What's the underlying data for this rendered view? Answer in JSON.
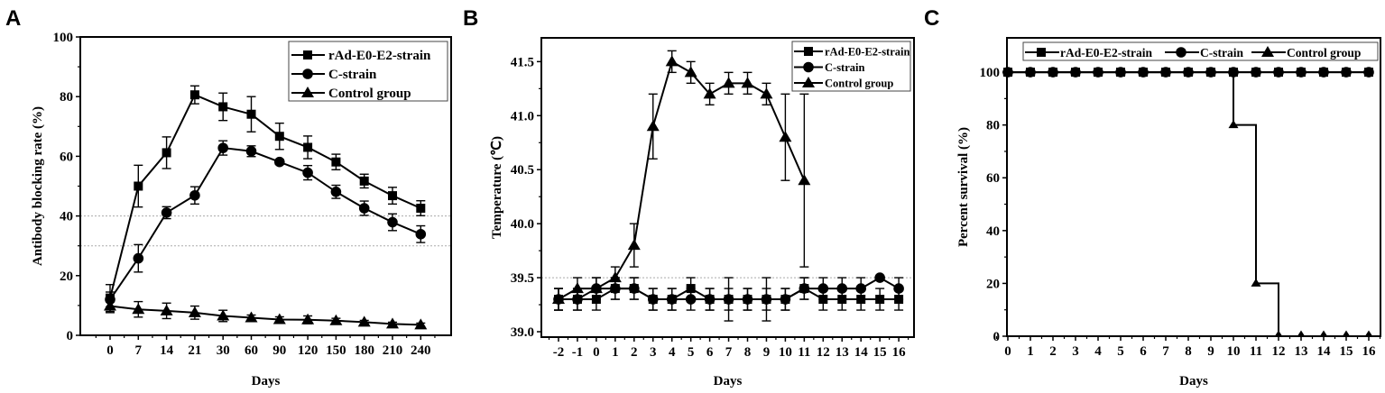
{
  "figure": {
    "panels": [
      "A",
      "B",
      "C"
    ]
  },
  "legend": [
    "rAd-E0-E2-strain",
    "C-strain",
    "Control group"
  ],
  "chart_data": [
    {
      "panel": "A",
      "type": "line",
      "title": "",
      "xlabel": "Days",
      "ylabel": "Antibody blocking rate (%)",
      "categories": [
        "0",
        "7",
        "14",
        "21",
        "30",
        "60",
        "90",
        "120",
        "150",
        "180",
        "210",
        "240"
      ],
      "ylim": [
        0,
        100
      ],
      "yticks": [
        0,
        20,
        40,
        60,
        80,
        100
      ],
      "reference_lines": [
        40,
        30
      ],
      "legend_position": "upper right",
      "series": [
        {
          "name": "rAd-E0-E2-strain",
          "marker": "square",
          "values": [
            12.5,
            50,
            61.2,
            80.6,
            76.6,
            74.1,
            66.7,
            63.0,
            58.1,
            51.7,
            46.8,
            42.6
          ],
          "errors": [
            4.5,
            7.0,
            5.3,
            3.0,
            4.6,
            5.9,
            4.4,
            3.8,
            2.6,
            2.3,
            2.8,
            2.5
          ]
        },
        {
          "name": "C-strain",
          "marker": "circle",
          "values": [
            12.0,
            25.8,
            41.1,
            46.9,
            62.8,
            61.7,
            58.1,
            54.5,
            48.1,
            42.6,
            37.9,
            33.9
          ],
          "errors": [
            2.5,
            4.6,
            2.0,
            2.9,
            2.4,
            1.8,
            0.8,
            2.4,
            2.2,
            2.4,
            2.8,
            2.8
          ]
        },
        {
          "name": "Control group",
          "marker": "triangle",
          "values": [
            9.8,
            8.7,
            8.2,
            7.6,
            6.5,
            5.9,
            5.3,
            5.2,
            4.9,
            4.4,
            3.8,
            3.5
          ],
          "errors": [
            2.2,
            2.6,
            2.6,
            2.2,
            1.9,
            0.9,
            0.9,
            1.3,
            0.8,
            0.6,
            0.6,
            0.6
          ]
        }
      ]
    },
    {
      "panel": "B",
      "type": "line",
      "title": "",
      "xlabel": "Days",
      "ylabel": "Temperature (℃)",
      "categories": [
        "-2",
        "-1",
        "0",
        "1",
        "2",
        "3",
        "4",
        "5",
        "6",
        "7",
        "8",
        "9",
        "10",
        "11",
        "12",
        "13",
        "14",
        "15",
        "16"
      ],
      "ylim": [
        38.95,
        41.72
      ],
      "yticks": [
        39.0,
        39.5,
        40.0,
        40.5,
        41.0,
        41.5
      ],
      "ytick_labels": [
        "39.0",
        "39.5",
        "40.0",
        "40.5",
        "41.0",
        "41.5"
      ],
      "reference_lines": [
        39.5
      ],
      "legend_position": "upper right",
      "series": [
        {
          "name": "rAd-E0-E2-strain",
          "marker": "square",
          "values": [
            39.3,
            39.3,
            39.3,
            39.4,
            39.4,
            39.3,
            39.3,
            39.4,
            39.3,
            39.3,
            39.3,
            39.3,
            39.3,
            39.4,
            39.3,
            39.3,
            39.3,
            39.3,
            39.3
          ],
          "errors": [
            0.1,
            0.1,
            0.1,
            0.1,
            0.1,
            0.1,
            0.1,
            0.1,
            0.1,
            0.2,
            0.1,
            0.2,
            0.1,
            0.1,
            0.1,
            0.1,
            0.1,
            0.1,
            0.1
          ]
        },
        {
          "name": "C-strain",
          "marker": "circle",
          "values": [
            39.3,
            39.3,
            39.4,
            39.4,
            39.4,
            39.3,
            39.3,
            39.3,
            39.3,
            39.3,
            39.3,
            39.3,
            39.3,
            39.4,
            39.4,
            39.4,
            39.4,
            39.5,
            39.4
          ],
          "errors": [
            0.1,
            0.1,
            0.1,
            0.1,
            0.1,
            0.1,
            0.1,
            0.1,
            0.1,
            0.1,
            0.1,
            0.1,
            0.1,
            0.1,
            0.1,
            0.1,
            0.1,
            0.0,
            0.1
          ]
        },
        {
          "name": "Control group",
          "marker": "triangle",
          "values": [
            39.3,
            39.4,
            39.4,
            39.5,
            39.8,
            40.9,
            41.5,
            41.4,
            41.2,
            41.3,
            41.3,
            41.2,
            40.8,
            40.4
          ],
          "errors": [
            0.1,
            0.1,
            0.1,
            0.1,
            0.2,
            0.3,
            0.1,
            0.1,
            0.1,
            0.1,
            0.1,
            0.1,
            0.4,
            0.8
          ]
        }
      ]
    },
    {
      "panel": "C",
      "type": "line",
      "step": true,
      "title": "",
      "xlabel": "Days",
      "ylabel": "Percent survival (%)",
      "categories": [
        "0",
        "1",
        "2",
        "3",
        "4",
        "5",
        "6",
        "7",
        "8",
        "9",
        "10",
        "11",
        "12",
        "13",
        "14",
        "15",
        "16"
      ],
      "ylim": [
        0,
        113
      ],
      "yticks": [
        0,
        20,
        40,
        60,
        80,
        100
      ],
      "legend_position": "top (horizontal)",
      "series": [
        {
          "name": "rAd-E0-E2-strain",
          "marker": "square",
          "values": [
            100,
            100,
            100,
            100,
            100,
            100,
            100,
            100,
            100,
            100,
            100,
            100,
            100,
            100,
            100,
            100,
            100
          ]
        },
        {
          "name": "C-strain",
          "marker": "circle",
          "values": [
            100,
            100,
            100,
            100,
            100,
            100,
            100,
            100,
            100,
            100,
            100,
            100,
            100,
            100,
            100,
            100,
            100
          ]
        },
        {
          "name": "Control group",
          "marker": "triangle",
          "values": [
            100,
            100,
            100,
            100,
            100,
            100,
            100,
            100,
            100,
            100,
            80,
            20,
            0,
            0,
            0,
            0,
            0
          ]
        }
      ]
    }
  ]
}
